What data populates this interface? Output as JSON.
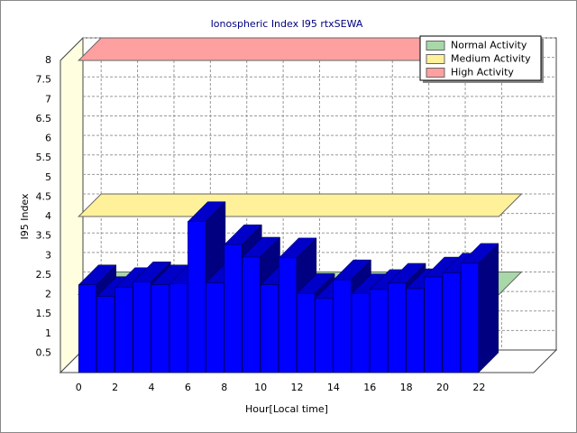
{
  "chart_data": {
    "type": "bar3d",
    "title": "Ionospheric Index I95 rtxSEWA",
    "x_label": "Hour[Local time]",
    "y_label": "I95 Index",
    "x": [
      0,
      1,
      2,
      3,
      4,
      5,
      6,
      7,
      8,
      9,
      10,
      11,
      12,
      13,
      14,
      15,
      16,
      17,
      18,
      19,
      20,
      21
    ],
    "values": [
      2.25,
      1.95,
      2.18,
      2.33,
      2.25,
      2.28,
      3.87,
      2.3,
      3.28,
      2.96,
      2.25,
      2.94,
      2.03,
      1.9,
      2.38,
      2.02,
      2.13,
      2.29,
      2.15,
      2.45,
      2.55,
      2.8
    ],
    "color": "#0000ff",
    "xlim": [
      -1,
      25
    ],
    "xticks": [
      0,
      2,
      4,
      6,
      8,
      10,
      12,
      14,
      16,
      18,
      20,
      22
    ],
    "ylim": [
      0,
      8
    ],
    "yticks": [
      0.5,
      1,
      1.5,
      2,
      2.5,
      3,
      3.5,
      4,
      4.5,
      5,
      5.5,
      6,
      6.5,
      7,
      7.5,
      8
    ],
    "grid": true,
    "legend": "top-right",
    "thresholds": [
      {
        "name": "Normal Activity",
        "color": "#a8d8a8",
        "value": 2
      },
      {
        "name": "Medium Activity",
        "color": "#fff09a",
        "value": 4
      },
      {
        "name": "High Activity",
        "color": "#ffa0a0",
        "value": 8
      }
    ]
  }
}
